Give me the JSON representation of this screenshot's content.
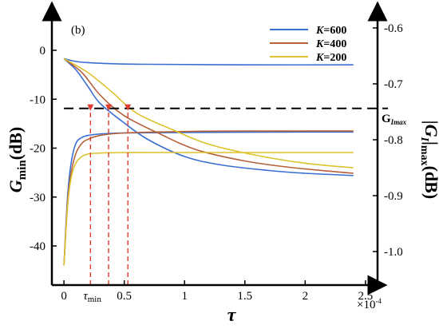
{
  "chart_data": {
    "type": "line",
    "panel_label": "(b)",
    "x_axis": {
      "label": "τ",
      "range": [
        -0.1,
        2.6
      ],
      "ticks": [
        0,
        0.5,
        1,
        1.5,
        2,
        2.5
      ],
      "tick_labels": [
        "0",
        "0.5",
        "1",
        "1.5",
        "2",
        "2.5"
      ],
      "exponent_label": "×10",
      "exponent_power": "-4",
      "annotation": {
        "main": "τ",
        "sub": "min",
        "x": 0.22
      }
    },
    "y_left": {
      "label_main": "G",
      "label_sub": "min",
      "label_unit": "(dB)",
      "range": [
        -48,
        8
      ],
      "ticks": [
        0,
        -10,
        -20,
        -30,
        -40
      ],
      "tick_labels": [
        "0",
        "-10",
        "-20",
        "-30",
        "-40"
      ]
    },
    "y_right": {
      "label_main": "|G",
      "label_sub": "I",
      "label_tail": "|",
      "label_sub2": "max",
      "label_unit": "(dB)",
      "range": [
        -1.06,
        -0.57
      ],
      "ticks": [
        -0.6,
        -0.7,
        -0.8,
        -0.9,
        -1.0
      ],
      "tick_labels": [
        "-0.6",
        "-0.7",
        "-0.8",
        "-0.9",
        "-1.0"
      ]
    },
    "reference_line": {
      "y_right": -0.744,
      "label_main": "G",
      "label_sub": "Imax",
      "style": "dashed",
      "color": "#000000"
    },
    "markers": [
      {
        "x": 0.22,
        "y_right": -0.744,
        "color": "#e33b2e"
      },
      {
        "x": 0.37,
        "y_right": -0.744,
        "color": "#e33b2e"
      },
      {
        "x": 0.53,
        "y_right": -0.744,
        "color": "#e33b2e"
      }
    ],
    "legend": {
      "position": "top-right"
    },
    "series": [
      {
        "name": "K=600",
        "legend_prefix": "K",
        "legend_value": "=600",
        "color": "#3a6fd1",
        "gmin": [
          [
            0,
            -44
          ],
          [
            0.03,
            -30
          ],
          [
            0.06,
            -23
          ],
          [
            0.1,
            -19
          ],
          [
            0.15,
            -17.8
          ],
          [
            0.2,
            -17.4
          ],
          [
            0.3,
            -17.1
          ],
          [
            0.5,
            -16.9
          ],
          [
            1,
            -16.8
          ],
          [
            2,
            -16.7
          ],
          [
            2.4,
            -16.7
          ]
        ],
        "gi": [
          [
            0,
            -0.655
          ],
          [
            0.1,
            -0.675
          ],
          [
            0.2,
            -0.705
          ],
          [
            0.3,
            -0.735
          ],
          [
            0.5,
            -0.77
          ],
          [
            0.7,
            -0.8
          ],
          [
            1,
            -0.83
          ],
          [
            1.3,
            -0.845
          ],
          [
            1.7,
            -0.855
          ],
          [
            2,
            -0.86
          ],
          [
            2.4,
            -0.864
          ]
        ],
        "gi_upper": [
          [
            0,
            -0.655
          ],
          [
            0.1,
            -0.66
          ],
          [
            0.2,
            -0.662
          ],
          [
            0.4,
            -0.664
          ],
          [
            0.7,
            -0.665
          ],
          [
            1.5,
            -0.666
          ],
          [
            2.4,
            -0.666
          ]
        ]
      },
      {
        "name": "K=400",
        "legend_prefix": "K",
        "legend_value": "=400",
        "color": "#b5623a",
        "gmin": [
          [
            0,
            -44
          ],
          [
            0.03,
            -31
          ],
          [
            0.06,
            -25
          ],
          [
            0.1,
            -21
          ],
          [
            0.15,
            -19
          ],
          [
            0.2,
            -18.2
          ],
          [
            0.3,
            -17.4
          ],
          [
            0.5,
            -16.9
          ],
          [
            1,
            -16.6
          ],
          [
            1.5,
            -16.5
          ],
          [
            2.4,
            -16.5
          ]
        ],
        "gi": [
          [
            0,
            -0.655
          ],
          [
            0.15,
            -0.68
          ],
          [
            0.3,
            -0.72
          ],
          [
            0.5,
            -0.757
          ],
          [
            0.8,
            -0.79
          ],
          [
            1.1,
            -0.818
          ],
          [
            1.5,
            -0.838
          ],
          [
            1.9,
            -0.85
          ],
          [
            2.4,
            -0.86
          ]
        ]
      },
      {
        "name": "K=200",
        "legend_prefix": "K",
        "legend_value": "=200",
        "color": "#dcc22c",
        "gmin": [
          [
            0,
            -44
          ],
          [
            0.03,
            -32
          ],
          [
            0.06,
            -26
          ],
          [
            0.1,
            -23
          ],
          [
            0.15,
            -21.7
          ],
          [
            0.2,
            -21.2
          ],
          [
            0.3,
            -21
          ],
          [
            0.5,
            -20.9
          ],
          [
            1,
            -20.9
          ],
          [
            2.4,
            -20.9
          ]
        ],
        "gi": [
          [
            0,
            -0.655
          ],
          [
            0.2,
            -0.68
          ],
          [
            0.4,
            -0.715
          ],
          [
            0.6,
            -0.752
          ],
          [
            0.9,
            -0.782
          ],
          [
            1.2,
            -0.808
          ],
          [
            1.6,
            -0.828
          ],
          [
            2,
            -0.842
          ],
          [
            2.4,
            -0.85
          ]
        ]
      }
    ]
  }
}
